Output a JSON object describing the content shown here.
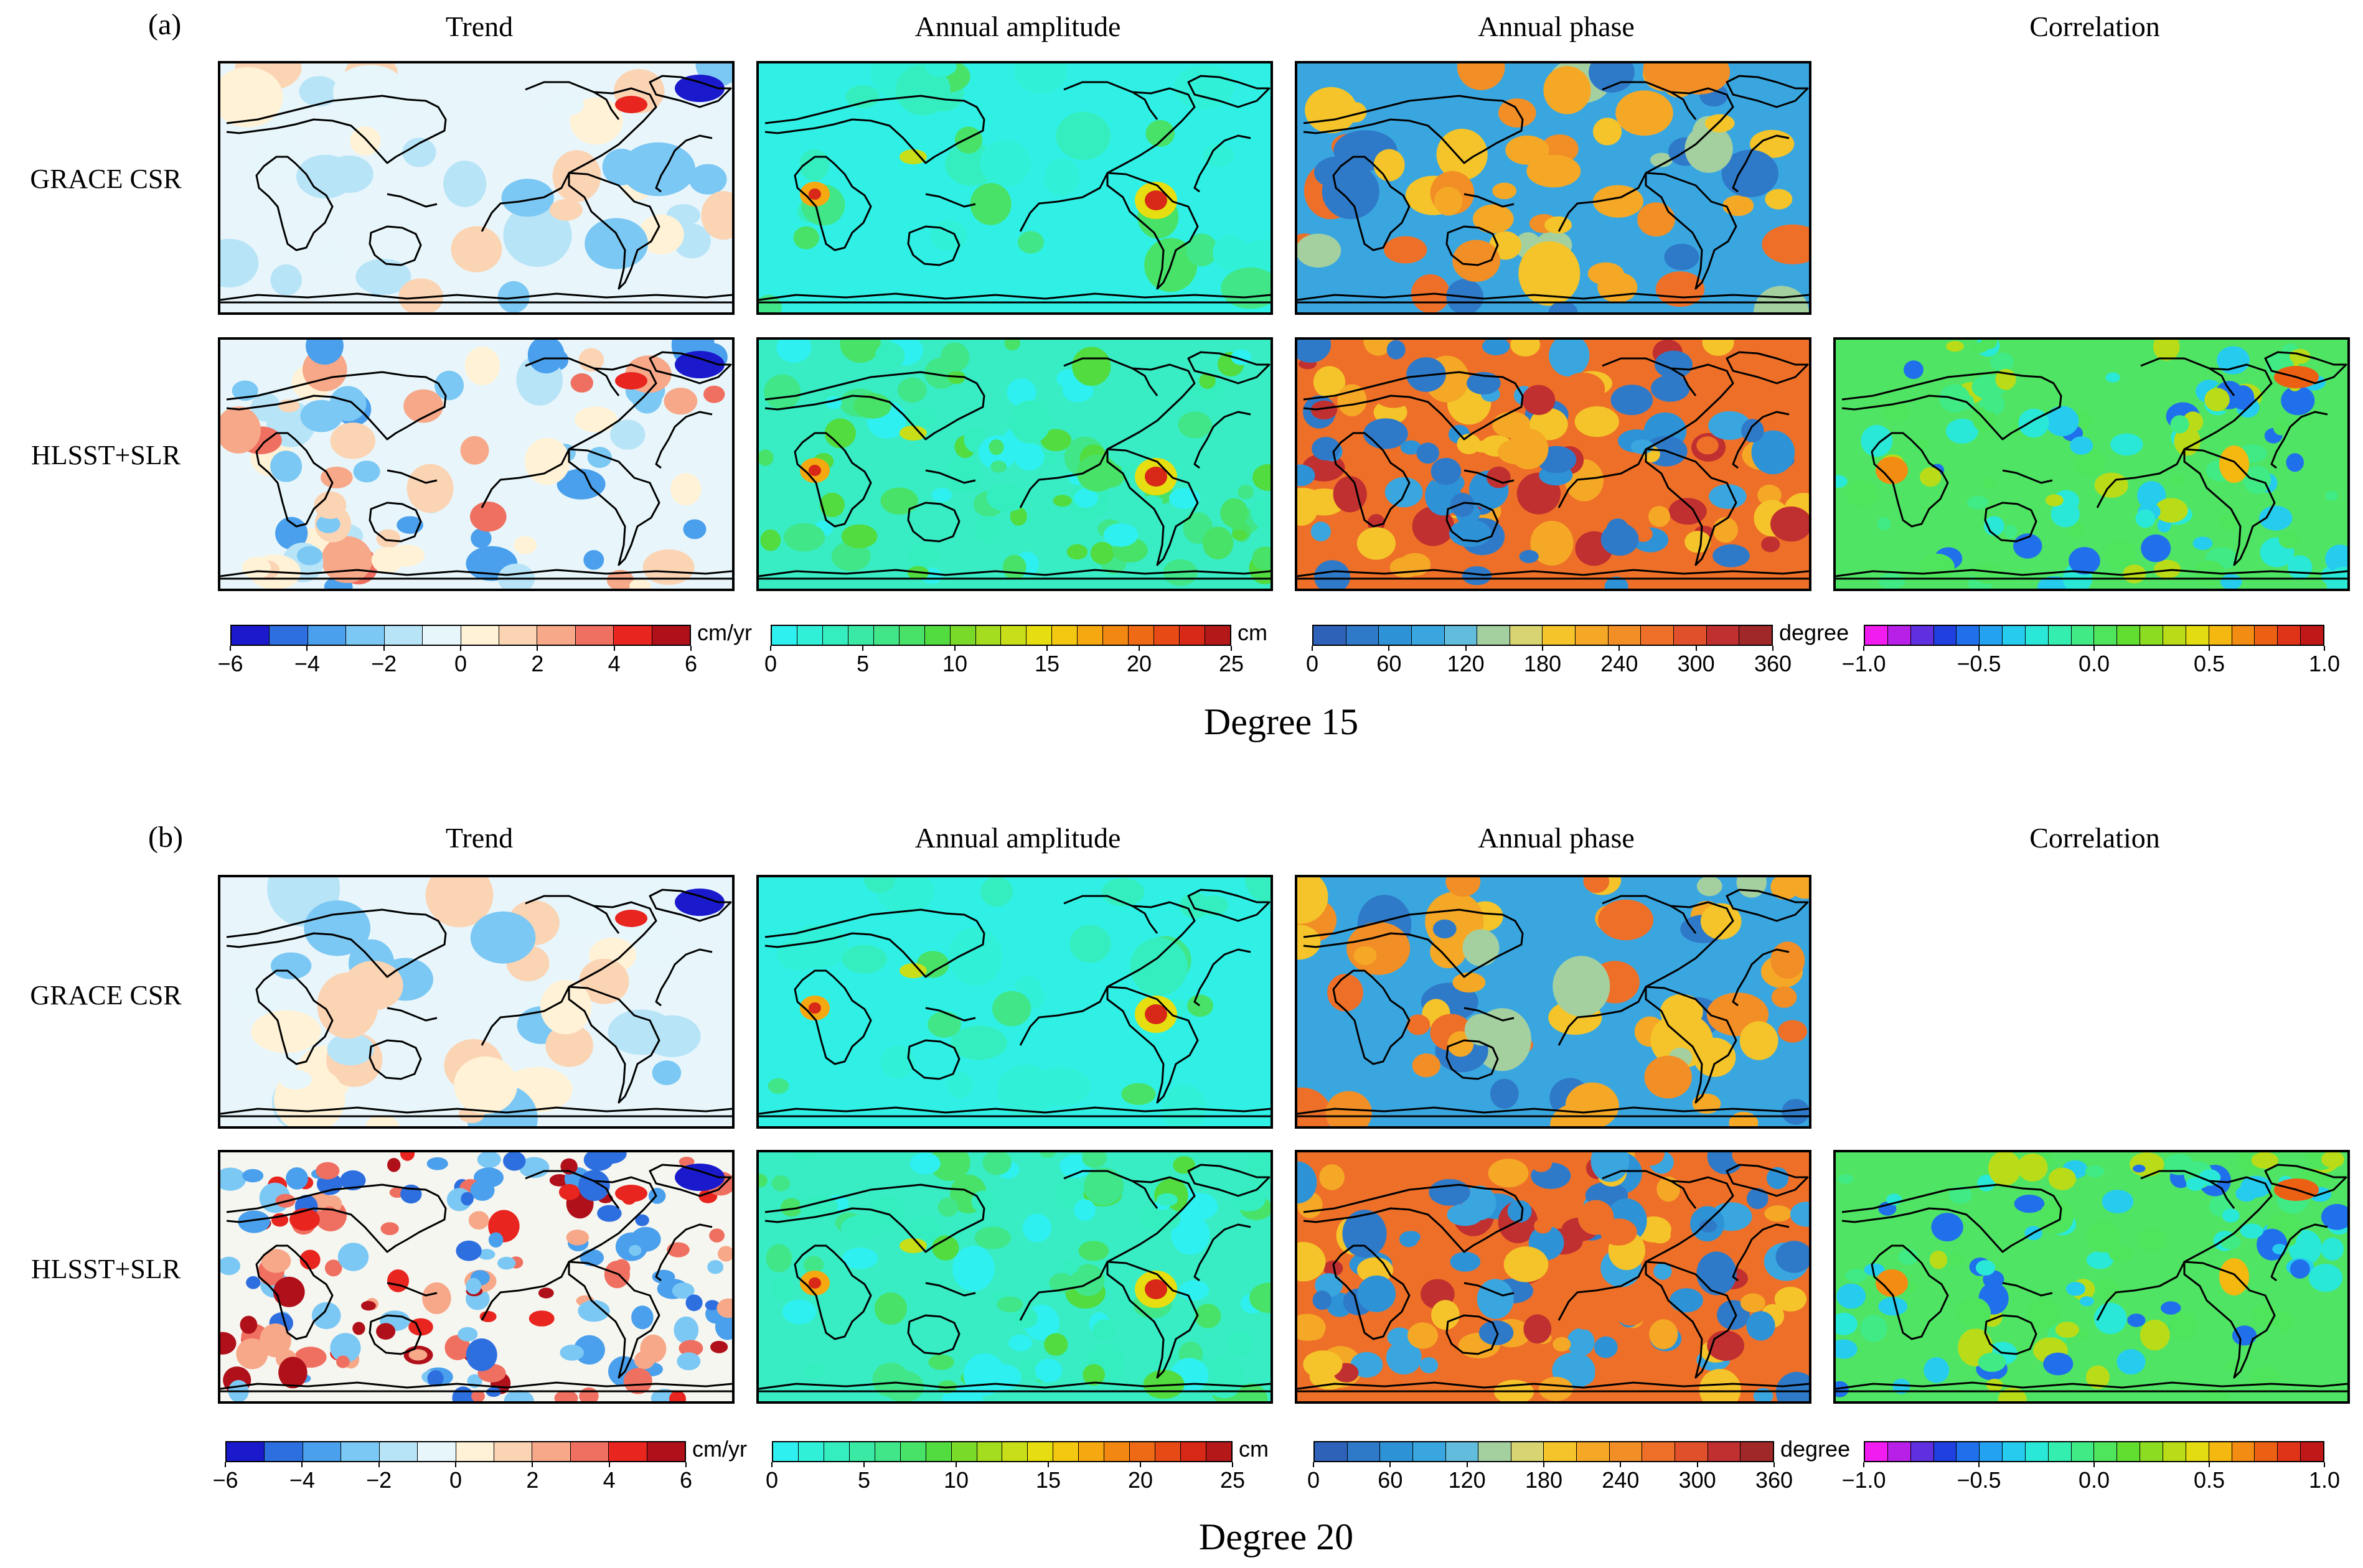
{
  "figure": {
    "sections": [
      {
        "letter": "(a)",
        "degree_title": "Degree 15"
      },
      {
        "letter": "(b)",
        "degree_title": "Degree 20"
      }
    ],
    "columns": [
      "Trend",
      "Annual amplitude",
      "Annual phase",
      "Correlation"
    ],
    "rows": [
      "GRACE CSR",
      "HLSST+SLR"
    ]
  },
  "colorbars": {
    "trend": {
      "unit": "cm/yr",
      "ticks": [
        "−6",
        "−4",
        "−2",
        "0",
        "2",
        "4",
        "6"
      ],
      "range": [
        -6,
        6
      ],
      "colors": [
        "#1a1acc",
        "#2e6fe0",
        "#4aa0ec",
        "#7cc8f4",
        "#b8e4f8",
        "#e6f6fb",
        "#fff2d6",
        "#fbd4b4",
        "#f7a888",
        "#ef7060",
        "#e8251f",
        "#b0101a"
      ]
    },
    "amplitude": {
      "unit": "cm",
      "ticks": [
        "0",
        "5",
        "10",
        "15",
        "20",
        "25"
      ],
      "range": [
        0,
        25
      ],
      "colors": [
        "#2ff0f0",
        "#30f0d8",
        "#35eec0",
        "#3aeaa4",
        "#40e688",
        "#48e268",
        "#52dc40",
        "#7ada2a",
        "#a4dc20",
        "#c8de18",
        "#e6de10",
        "#f4c810",
        "#f6a810",
        "#f28812",
        "#ee6a14",
        "#e84a16",
        "#d82818",
        "#b41818"
      ]
    },
    "phase": {
      "unit": "degree",
      "ticks": [
        "0",
        "60",
        "120",
        "180",
        "240",
        "300",
        "360"
      ],
      "range": [
        0,
        360
      ],
      "colors": [
        "#2e62b8",
        "#2f7ac8",
        "#2e92d6",
        "#3aa6e0",
        "#62bcdc",
        "#a4d0a0",
        "#d8d472",
        "#f4c42a",
        "#f5a826",
        "#f28e26",
        "#ee7028",
        "#e0502a",
        "#c03030",
        "#a02828"
      ]
    },
    "correlation": {
      "unit": "",
      "ticks": [
        "−1.0",
        "−0.5",
        "0.0",
        "0.5",
        "1.0"
      ],
      "range": [
        -1.0,
        1.0
      ],
      "colors": [
        "#f01cf0",
        "#b820e8",
        "#6030e0",
        "#2040e0",
        "#2070ec",
        "#22a2f0",
        "#26ccee",
        "#2ae8d8",
        "#34eeb0",
        "#40ea84",
        "#4ee45c",
        "#62de30",
        "#8cdc22",
        "#badc18",
        "#e4dc12",
        "#f4b810",
        "#f28c12",
        "#ec6014",
        "#e03418",
        "#c01818"
      ]
    }
  }
}
